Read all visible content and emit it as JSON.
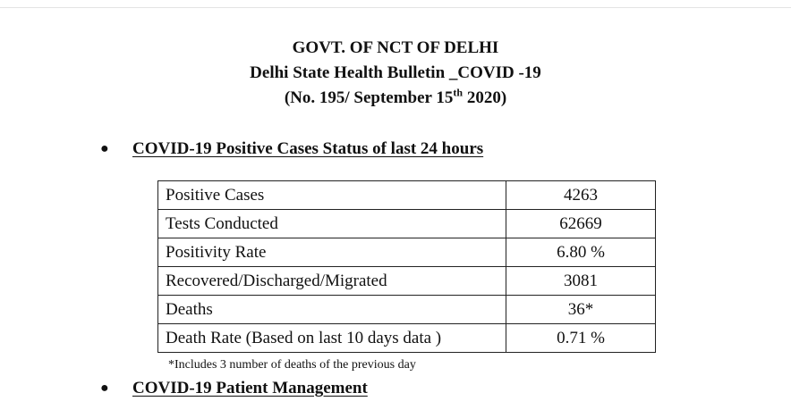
{
  "header": {
    "line1": "GOVT. OF NCT OF DELHI",
    "line2": "Delhi State Health Bulletin _COVID -19",
    "line3_prefix": "(No. 195/ September 15",
    "line3_sup": "th",
    "line3_suffix": " 2020)"
  },
  "section1": {
    "title": "COVID-19 Positive Cases Status of last 24 hours",
    "rows": [
      {
        "label": "Positive Cases",
        "value": "4263"
      },
      {
        "label": "Tests Conducted",
        "value": "62669"
      },
      {
        "label": "Positivity Rate",
        "value": "6.80 %"
      },
      {
        "label": "Recovered/Discharged/Migrated",
        "value": "3081"
      },
      {
        "label": "Deaths",
        "value": "36*"
      },
      {
        "label": "Death Rate (Based on last 10 days data )",
        "value": "0.71 %"
      }
    ],
    "footnote": "*Includes 3 number of deaths of the previous day"
  },
  "section2": {
    "title": "COVID-19 Patient Management"
  }
}
